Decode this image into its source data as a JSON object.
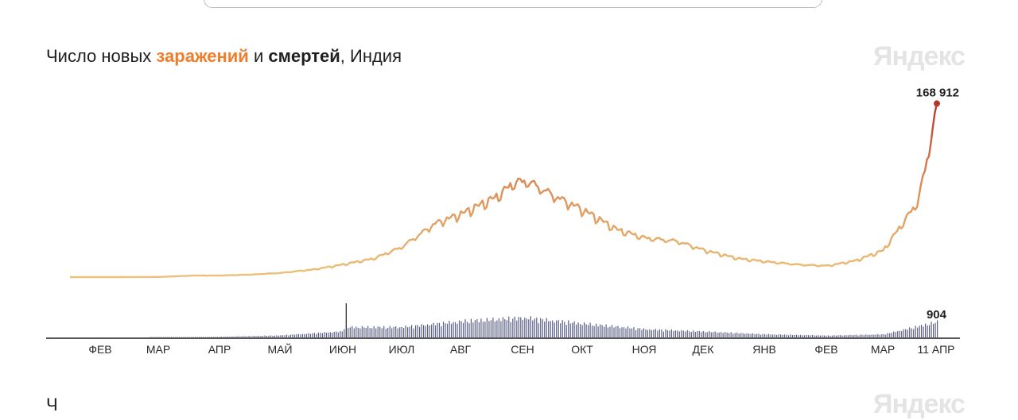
{
  "header": {
    "title_prefix": "Число новых ",
    "title_infections": "заражений",
    "title_and": " и ",
    "title_deaths": "смертей",
    "title_suffix": ", Индия",
    "brand": "Яндекс"
  },
  "next_chart": {
    "title": "Ч"
  },
  "colors": {
    "infections_low": "#ecc27a",
    "infections_mid": "#dc8a54",
    "infections_high": "#b8352a",
    "deaths_bar": "#5b5f86",
    "axis": "#1f1f1f"
  },
  "chart_data": [
    {
      "type": "line",
      "title": "Число новых заражений и смертей, Индия",
      "series_name": "заражений",
      "x_unit": "week",
      "x": [
        "2020-01-30",
        "2020-02-15",
        "2020-03-01",
        "2020-03-15",
        "2020-04-01",
        "2020-04-15",
        "2020-05-01",
        "2020-05-15",
        "2020-06-01",
        "2020-06-15",
        "2020-07-01",
        "2020-07-15",
        "2020-08-01",
        "2020-08-15",
        "2020-09-01",
        "2020-09-10",
        "2020-09-17",
        "2020-10-01",
        "2020-10-15",
        "2020-11-01",
        "2020-11-15",
        "2020-12-01",
        "2020-12-15",
        "2021-01-01",
        "2021-01-15",
        "2021-02-01",
        "2021-02-15",
        "2021-03-01",
        "2021-03-15",
        "2021-04-01",
        "2021-04-05",
        "2021-04-11"
      ],
      "values": [
        0,
        0,
        50,
        150,
        1500,
        1500,
        2500,
        4000,
        7500,
        12000,
        18000,
        29000,
        52000,
        62000,
        78000,
        92000,
        93000,
        78000,
        65000,
        46000,
        38000,
        35000,
        26000,
        18000,
        15000,
        12000,
        11000,
        16000,
        26000,
        72000,
        103000,
        168912
      ],
      "peak_label": "168 912",
      "ylim": [
        0,
        170000
      ],
      "x_ticks": [
        "ФЕВ",
        "МАР",
        "АПР",
        "МАЙ",
        "ИЮН",
        "ИЮЛ",
        "АВГ",
        "СЕН",
        "ОКТ",
        "НОЯ",
        "ДЕК",
        "ЯНВ",
        "ФЕВ",
        "МАР",
        "11 АПР"
      ]
    },
    {
      "type": "bar",
      "series_name": "смертей",
      "x": [
        "2020-03-15",
        "2020-04-15",
        "2020-05-15",
        "2020-06-15",
        "2020-06-17",
        "2020-07-15",
        "2020-08-15",
        "2020-09-15",
        "2020-10-15",
        "2020-11-15",
        "2020-12-15",
        "2021-01-15",
        "2021-02-15",
        "2021-03-15",
        "2021-04-11"
      ],
      "values": [
        5,
        40,
        120,
        350,
        2000,
        600,
        950,
        1150,
        800,
        480,
        340,
        180,
        110,
        180,
        904
      ],
      "peak_label": "904",
      "ylim": [
        0,
        2000
      ]
    }
  ]
}
